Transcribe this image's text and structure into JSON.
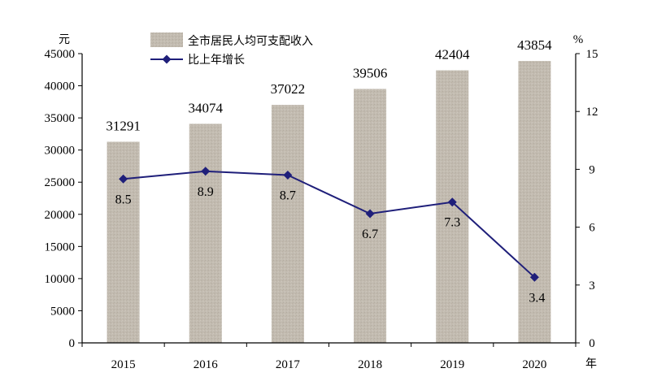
{
  "chart_data": {
    "type": "bar",
    "categories": [
      "2015",
      "2016",
      "2017",
      "2018",
      "2019",
      "2020"
    ],
    "x_unit": "年",
    "left_axis": {
      "unit": "元",
      "ylim": [
        0,
        45000
      ],
      "ticks": [
        0,
        5000,
        10000,
        15000,
        20000,
        25000,
        30000,
        35000,
        40000,
        45000
      ]
    },
    "right_axis": {
      "unit": "%",
      "ylim": [
        0,
        15
      ],
      "ticks": [
        0,
        3,
        6,
        9,
        12,
        15
      ]
    },
    "grid": false,
    "legend_position": "top-center",
    "series": [
      {
        "name": "全市居民人均可支配收入",
        "type": "bar",
        "axis": "left",
        "color": "#c2bbb0",
        "values": [
          31291,
          34074,
          37022,
          39506,
          42404,
          43854
        ]
      },
      {
        "name": "比上年增长",
        "type": "line",
        "axis": "right",
        "color": "#1f1f7a",
        "marker": "diamond",
        "values": [
          8.5,
          8.9,
          8.7,
          6.7,
          7.3,
          3.4
        ]
      }
    ]
  }
}
